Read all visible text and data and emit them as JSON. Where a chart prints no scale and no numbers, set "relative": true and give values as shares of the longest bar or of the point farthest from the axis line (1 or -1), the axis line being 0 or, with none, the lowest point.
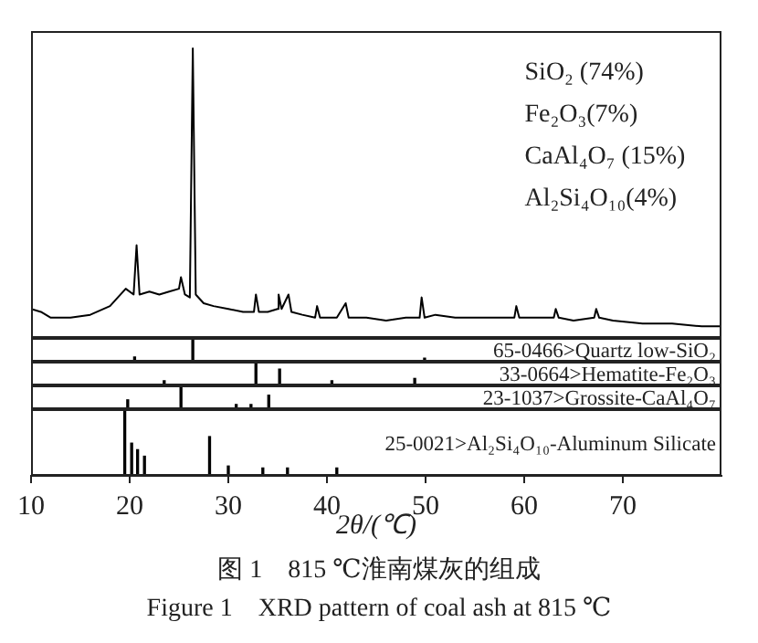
{
  "chart_data": [
    {
      "type": "line",
      "relative": true,
      "color": "#000000",
      "marker": "none",
      "xlim": [
        10,
        80
      ],
      "tick_labels": false,
      "grid": false,
      "legend": false,
      "x": [
        10,
        11,
        12,
        14,
        16,
        18,
        19.6,
        20.4,
        20.7,
        21.0,
        22,
        23,
        24,
        25,
        25.2,
        25.6,
        26.1,
        26.4,
        26.7,
        27.5,
        28.5,
        30,
        31.5,
        32.6,
        32.8,
        33.1,
        34,
        35.0,
        35.1,
        35.4,
        36.1,
        36.4,
        37.5,
        38.8,
        39.0,
        39.3,
        41,
        41.9,
        42.2,
        44,
        46,
        48,
        49.4,
        49.6,
        49.9,
        51,
        53,
        55,
        57,
        59.0,
        59.2,
        59.5,
        61,
        63.0,
        63.2,
        63.5,
        65,
        67.1,
        67.3,
        67.6,
        69,
        72,
        75,
        78,
        80
      ],
      "values": [
        0.1,
        0.09,
        0.07,
        0.07,
        0.08,
        0.11,
        0.17,
        0.15,
        0.32,
        0.15,
        0.16,
        0.15,
        0.16,
        0.17,
        0.21,
        0.15,
        0.14,
        1.0,
        0.15,
        0.12,
        0.11,
        0.1,
        0.09,
        0.09,
        0.15,
        0.09,
        0.09,
        0.1,
        0.15,
        0.1,
        0.15,
        0.09,
        0.08,
        0.07,
        0.11,
        0.07,
        0.07,
        0.12,
        0.07,
        0.07,
        0.06,
        0.07,
        0.07,
        0.14,
        0.07,
        0.08,
        0.07,
        0.07,
        0.07,
        0.07,
        0.11,
        0.07,
        0.07,
        0.07,
        0.1,
        0.07,
        0.06,
        0.07,
        0.1,
        0.07,
        0.06,
        0.05,
        0.05,
        0.04,
        0.04
      ],
      "annotations": [
        "SiO₂ (74%)",
        "Fe₂O₃(7%)",
        "CaAl₄O₇ (15%)",
        "Al₂Si₄O₁₀(4%)"
      ]
    },
    {
      "type": "bar",
      "relative": true,
      "color": "#000000",
      "xlim": [
        10,
        80
      ],
      "tick_labels": false,
      "grid": false,
      "legend": false,
      "x": [
        20.5,
        26.4,
        49.9
      ],
      "values": [
        0.2,
        1.0,
        0.15
      ],
      "annotations": [
        "65-0466>Quartz low-SiO₂"
      ]
    },
    {
      "type": "bar",
      "relative": true,
      "color": "#000000",
      "xlim": [
        10,
        80
      ],
      "tick_labels": false,
      "grid": false,
      "legend": false,
      "x": [
        23.5,
        32.8,
        35.2,
        40.5,
        48.9
      ],
      "values": [
        0.2,
        1.0,
        0.7,
        0.2,
        0.3
      ],
      "annotations": [
        "33-0664>Hematite-Fe₂O₃"
      ]
    },
    {
      "type": "bar",
      "relative": true,
      "color": "#000000",
      "xlim": [
        10,
        80
      ],
      "tick_labels": false,
      "grid": false,
      "legend": false,
      "x": [
        19.8,
        25.2,
        30.8,
        32.3,
        34.1
      ],
      "values": [
        0.4,
        1.0,
        0.2,
        0.2,
        0.6
      ],
      "annotations": [
        "23-1037>Grossite-CaAl₄O₇"
      ]
    },
    {
      "type": "bar",
      "relative": true,
      "color": "#000000",
      "xlim": [
        10,
        80
      ],
      "xticks": [
        10,
        20,
        30,
        40,
        50,
        60,
        70
      ],
      "tick_labels": "x",
      "grid": false,
      "legend": false,
      "xlabel": "2θ/(℃)",
      "x": [
        19.5,
        20.2,
        20.8,
        21.5,
        28.1,
        30.0,
        33.5,
        36.0,
        41.0
      ],
      "values": [
        1.0,
        0.5,
        0.4,
        0.3,
        0.6,
        0.15,
        0.12,
        0.12,
        0.12
      ],
      "annotations": [
        "25-0021>Al₂Si₄O₁₀-Aluminum Silicate",
        "图 1　815 ℃淮南煤灰的组成",
        "Figure 1　XRD pattern of coal ash at 815 ℃"
      ]
    }
  ]
}
